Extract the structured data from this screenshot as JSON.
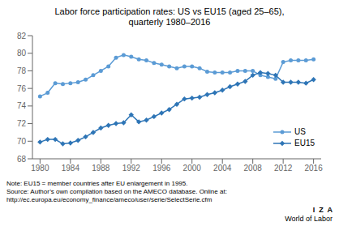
{
  "chart_data": {
    "type": "line",
    "title": "Labor force participation rates: US vs EU15 (aged 25–65),\nquarterly 1980–2016",
    "x": [
      1980,
      1981,
      1982,
      1983,
      1984,
      1985,
      1986,
      1987,
      1988,
      1989,
      1990,
      1991,
      1992,
      1993,
      1994,
      1995,
      1996,
      1997,
      1998,
      1999,
      2000,
      2001,
      2002,
      2003,
      2004,
      2005,
      2006,
      2007,
      2008,
      2009,
      2010,
      2011,
      2012,
      2013,
      2014,
      2015,
      2016
    ],
    "series": [
      {
        "name": "US",
        "color": "#5b9bd5",
        "marker": "circle",
        "values": [
          75.1,
          75.5,
          76.6,
          76.5,
          76.6,
          76.7,
          77.0,
          77.5,
          78.0,
          78.5,
          79.5,
          79.8,
          79.6,
          79.3,
          79.2,
          78.9,
          78.7,
          78.5,
          78.3,
          78.5,
          78.5,
          78.3,
          77.9,
          77.8,
          77.8,
          77.8,
          78.0,
          78.0,
          78.0,
          77.5,
          77.3,
          77.1,
          79.0,
          79.2,
          79.2,
          79.2,
          79.3
        ]
      },
      {
        "name": "EU15",
        "color": "#2e75b6",
        "marker": "diamond",
        "values": [
          69.9,
          70.2,
          70.2,
          69.7,
          69.8,
          70.1,
          70.5,
          71.0,
          71.5,
          71.8,
          72.0,
          72.1,
          73.0,
          72.2,
          72.4,
          72.8,
          73.2,
          73.6,
          74.2,
          74.8,
          74.9,
          75.0,
          75.3,
          75.5,
          75.8,
          76.2,
          76.5,
          76.8,
          77.5,
          77.8,
          77.7,
          77.5,
          76.7,
          76.7,
          76.7,
          76.6,
          77.0
        ]
      }
    ],
    "xlim": [
      1979,
      2017
    ],
    "xticks": [
      1980,
      1984,
      1988,
      1992,
      1996,
      2000,
      2004,
      2008,
      2012,
      2016
    ],
    "ylim": [
      68,
      82
    ],
    "yticks": [
      68,
      70,
      72,
      74,
      76,
      78,
      80,
      82
    ],
    "grid": false,
    "legend": "lower right",
    "annotations": [
      "Note: EU15 = member countries after EU enlargement in 1995.",
      "Source: Author’s own compilation based on the AMECO database. Online at:\nhttp://ec.europa.eu/economy_finance/ameco/user/serie/SelectSerie.cfm",
      "I  Z  A",
      "World of Labor"
    ]
  }
}
